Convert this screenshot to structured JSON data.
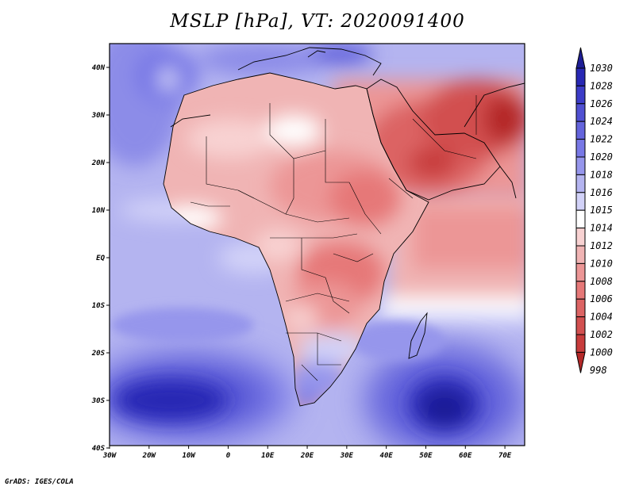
{
  "title": "MSLP [hPa], VT: 2020091400",
  "footer": "GrADS: IGES/COLA",
  "map": {
    "projection": "latlon",
    "lon_range": [
      -30,
      75
    ],
    "lat_range": [
      -40,
      45
    ],
    "x_ticks": [
      "30W",
      "20W",
      "10W",
      "0",
      "10E",
      "20E",
      "30E",
      "40E",
      "50E",
      "60E",
      "70E"
    ],
    "y_ticks": [
      "40N",
      "30N",
      "20N",
      "10N",
      "EQ",
      "10S",
      "20S",
      "30S",
      "40S"
    ],
    "background_color": "#b4b4f0"
  },
  "colorbar": {
    "levels": [
      "1030",
      "1028",
      "1026",
      "1024",
      "1022",
      "1020",
      "1018",
      "1016",
      "1015",
      "1014",
      "1012",
      "1010",
      "1008",
      "1006",
      "1004",
      "1002",
      "1000",
      "998"
    ],
    "colors": [
      "#1e1e96",
      "#2828b4",
      "#3c3cc8",
      "#5050d2",
      "#6464dc",
      "#7878e6",
      "#9696ec",
      "#b4b4f0",
      "#d2d2f8",
      "#ffffff",
      "#f8d2d2",
      "#f0b4b4",
      "#ec9696",
      "#e67878",
      "#dc6464",
      "#d25050",
      "#c83c3c",
      "#b42828"
    ]
  },
  "features": [
    {
      "name": "high-south-atlantic",
      "value_hpa": 1028
    },
    {
      "name": "high-south-indian",
      "value_hpa": 1030
    },
    {
      "name": "low-arabia",
      "value_hpa": 1000
    },
    {
      "name": "low-pakistan",
      "value_hpa": 998
    }
  ]
}
